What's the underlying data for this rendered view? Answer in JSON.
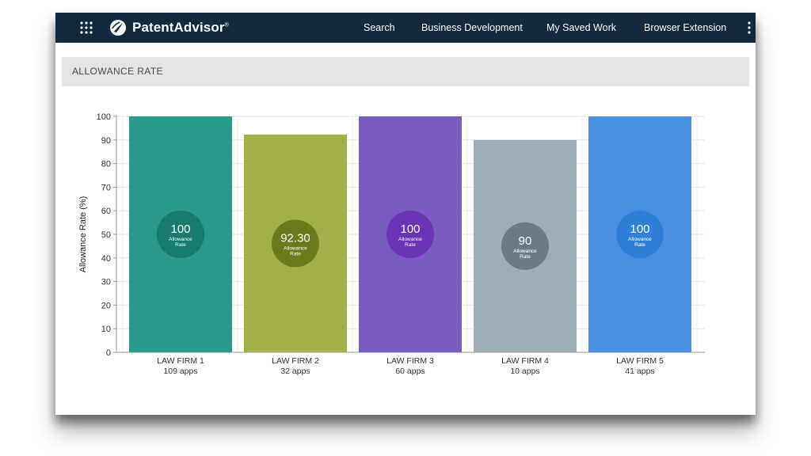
{
  "nav": {
    "brand": "PatentAdvisor",
    "brand_mark": "®",
    "items": [
      "Search",
      "Business Development",
      "My Saved Work",
      "Browser Extension"
    ],
    "icons": {
      "menu": "grid-menu-icon",
      "more": "more-vertical-icon",
      "logo": "patentadvisor-logo-icon"
    },
    "bar_color": "#13293d"
  },
  "section": {
    "title": "ALLOWANCE RATE"
  },
  "chart_data": {
    "type": "bar",
    "ylabel": "Allowance Rate (%)",
    "ylim": [
      0,
      100
    ],
    "yticks": [
      0,
      10,
      20,
      30,
      40,
      50,
      60,
      70,
      80,
      90,
      100
    ],
    "grid": true,
    "legend": "none",
    "categories": [
      "LAW FIRM 1",
      "LAW FIRM 2",
      "LAW FIRM 3",
      "LAW FIRM 4",
      "LAW FIRM 5"
    ],
    "subtitles": [
      "109 apps",
      "32 apps",
      "60 apps",
      "10 apps",
      "41 apps"
    ],
    "values": [
      100,
      92.3,
      100,
      90,
      100
    ],
    "value_labels": [
      "100",
      "92.30",
      "100",
      "90",
      "100"
    ],
    "badge_caption": [
      "Allowance",
      "Rate"
    ],
    "bar_colors": [
      "#2a9a8a",
      "#a3b04a",
      "#7a5bbf",
      "#9eaeb8",
      "#4a90e0"
    ],
    "badge_colors": [
      "#167a6c",
      "#6b7a1c",
      "#6a34b4",
      "#6c7a85",
      "#2f7fd8"
    ]
  }
}
